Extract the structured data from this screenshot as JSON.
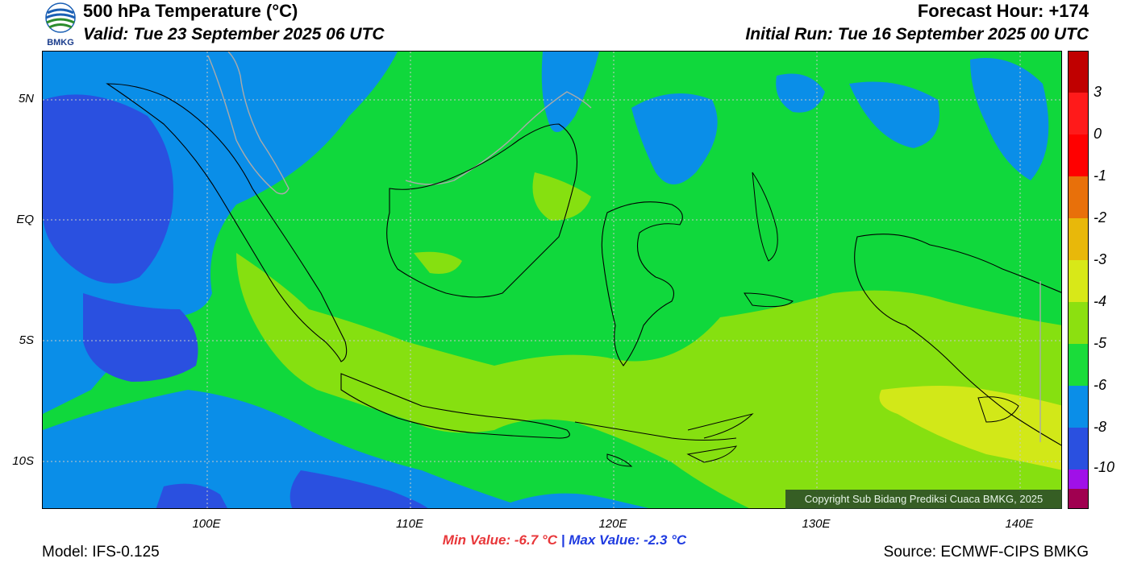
{
  "header": {
    "title": "500 hPa Temperature (°C)",
    "valid": "Valid: Tue 23 September 2025 06 UTC",
    "forecast_hour": "Forecast Hour: +174",
    "initial_run": "Initial Run: Tue 16 September 2025 00 UTC",
    "logo_text": "BMKG"
  },
  "map": {
    "lat_labels": [
      "5N",
      "EQ",
      "5S",
      "10S"
    ],
    "lon_labels": [
      "100E",
      "110E",
      "120E",
      "130E",
      "140E"
    ],
    "copyright": "Copyright Sub Bidang Prediksi Cuaca BMKG, 2025",
    "colors": {
      "minus8": "#2a50e0",
      "minus6": "#0a8ee8",
      "minus5": "#10d83c",
      "minus4": "#86e010",
      "minus3": "#d2e818",
      "coast": "#000000",
      "border": "#aaaaaa"
    }
  },
  "legend": {
    "labels": [
      "3",
      "0",
      "-1",
      "-2",
      "-3",
      "-4",
      "-5",
      "-6",
      "-8",
      "-10"
    ],
    "colors": [
      "#c00000",
      "#ff1a1a",
      "#ff0000",
      "#e8700a",
      "#e8b80a",
      "#d8e818",
      "#8ce010",
      "#1adc3a",
      "#0a8ee8",
      "#2a50e0",
      "#a010e8",
      "#a00050"
    ]
  },
  "footer": {
    "min_value": "Min Value: -6.7 °C",
    "separator": "|",
    "max_value": "Max Value: -2.3 °C",
    "model": "Model: IFS-0.125",
    "source": "Source: ECMWF-CIPS BMKG"
  }
}
